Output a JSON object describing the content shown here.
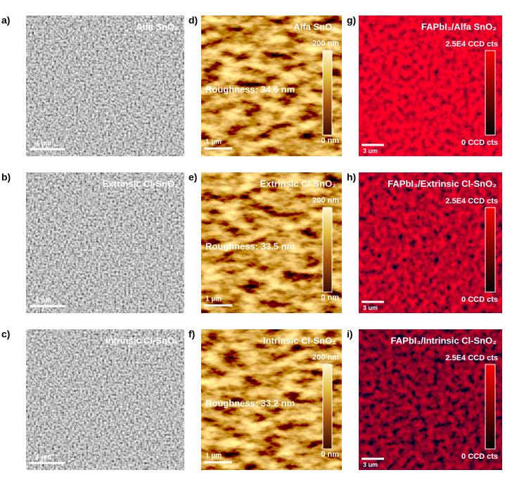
{
  "panels": [
    {
      "label": "a)",
      "title": "Alfa SnO₂",
      "scale_bar": "4 µm"
    },
    {
      "label": "b)",
      "title": "Extrinsic Cl-SnO₂",
      "scale_bar": "4 µm"
    },
    {
      "label": "c)",
      "title": "Intrinsic Cl-SnO₂",
      "scale_bar": "4 µm"
    },
    {
      "label": "d)",
      "title": "Alfa SnO₂",
      "scale_bar": "1 µm",
      "roughness": "Roughness: 34.6 nm",
      "colorbar_max": "200 nm",
      "colorbar_min": "0 nm"
    },
    {
      "label": "e)",
      "title": "Extrinsic Cl-SnO₂",
      "scale_bar": "1 µm",
      "roughness": "Roughness: 33.5 nm",
      "colorbar_max": "200 nm",
      "colorbar_min": "0 nm"
    },
    {
      "label": "f)",
      "title": "Intrinsic Cl-SnO₂",
      "scale_bar": "1 µm",
      "roughness": "Roughness: 33.2 nm",
      "colorbar_max": "200 nm",
      "colorbar_min": "0 nm"
    },
    {
      "label": "g)",
      "title": "FAPbI₃/Alfa SnO₂",
      "scale_bar": "3 um",
      "colorbar_max": "2.5E4 CCD cts",
      "colorbar_min": "0 CCD cts"
    },
    {
      "label": "h)",
      "title": "FAPbI₃/Extrinsic Cl-SnO₂",
      "scale_bar": "3 um",
      "colorbar_max": "2.5E4 CCD cts",
      "colorbar_min": "0 CCD cts"
    },
    {
      "label": "i)",
      "title": "FAPbI₃/Intrinsic Cl-SnO₂",
      "scale_bar": "3 um",
      "colorbar_max": "2.5E4 CCD cts",
      "colorbar_min": "0 CCD cts"
    }
  ]
}
